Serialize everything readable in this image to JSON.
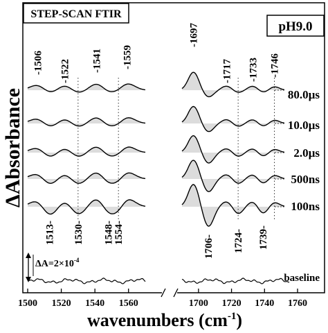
{
  "chart_data": {
    "type": "line",
    "title": "STEP-SCAN FTIR",
    "condition": "pH9.0",
    "xlabel": "wavenumbers (cm",
    "xlabel_sup": "-1",
    "xlabel_close": ")",
    "ylabel": "ΔAbsorbance",
    "scale_bar_label": "ΔA=2×10",
    "scale_bar_exp": "-4",
    "x_axis_break": [
      1570,
      1690
    ],
    "xlim": [
      1500,
      1760
    ],
    "x_ticks": [
      "1500",
      "1520",
      "1540",
      "1560",
      "1700",
      "1720",
      "1740",
      "1760"
    ],
    "x_tick_values": [
      1500,
      1520,
      1540,
      1560,
      1700,
      1720,
      1740,
      1760
    ],
    "series": [
      {
        "name": "80.0µs"
      },
      {
        "name": "10.0µs"
      },
      {
        "name": "2.0µs"
      },
      {
        "name": "500ns"
      },
      {
        "name": "100ns"
      },
      {
        "name": "baseline"
      }
    ],
    "top_annotations": [
      "-1506",
      "-1522",
      "-1541",
      "-1559",
      "-1697",
      "-1717",
      "-1733",
      "-1746"
    ],
    "top_annotation_values": [
      1506,
      1522,
      1541,
      1559,
      1697,
      1717,
      1733,
      1746
    ],
    "bottom_annotations": [
      "1513-",
      "1530-",
      "1548-",
      "1554-",
      "1706-",
      "1724-",
      "1739-"
    ],
    "bottom_annotation_values": [
      1513,
      1530,
      1548,
      1554,
      1706,
      1724,
      1739
    ]
  }
}
